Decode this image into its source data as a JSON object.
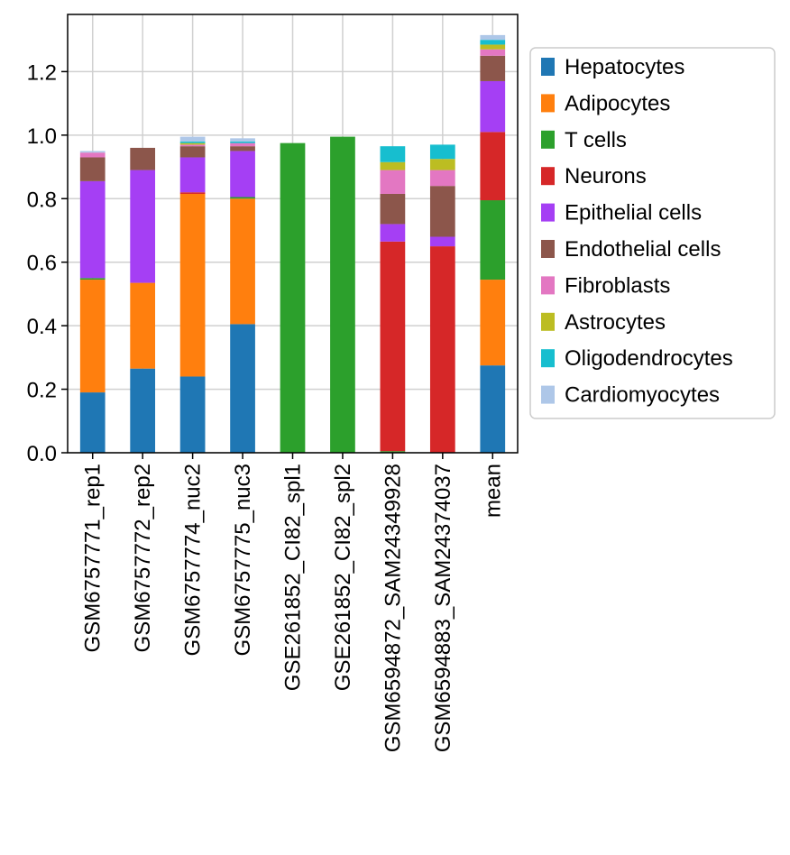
{
  "chart_data": {
    "type": "bar",
    "stacked": true,
    "title": "",
    "xlabel": "",
    "ylabel": "",
    "ylim": [
      0,
      1.38
    ],
    "yticks": [
      0.0,
      0.2,
      0.4,
      0.6,
      0.8,
      1.0,
      1.2
    ],
    "ytick_labels": [
      "0.0",
      "0.2",
      "0.4",
      "0.6",
      "0.8",
      "1.0",
      "1.2"
    ],
    "grid": true,
    "legend_position": "right",
    "categories": [
      "GSM6757771_rep1",
      "GSM6757772_rep2",
      "GSM6757774_nuc2",
      "GSM6757775_nuc3",
      "GSE261852_CI82_spl1",
      "GSE261852_CI82_spl2",
      "GSM6594872_SAM24349928",
      "GSM6594883_SAM24374037",
      "mean"
    ],
    "series": [
      {
        "name": "Hepatocytes",
        "color": "#1f77b4",
        "values": [
          0.19,
          0.265,
          0.24,
          0.405,
          0.0,
          0.0,
          0.0,
          0.0,
          0.275
        ]
      },
      {
        "name": "Adipocytes",
        "color": "#ff7f0e",
        "values": [
          0.355,
          0.27,
          0.575,
          0.395,
          0.0,
          0.0,
          0.0,
          0.0,
          0.27
        ]
      },
      {
        "name": "T cells",
        "color": "#2ca02c",
        "values": [
          0.005,
          0.0,
          0.0,
          0.005,
          0.975,
          0.995,
          0.005,
          0.0,
          0.25
        ]
      },
      {
        "name": "Neurons",
        "color": "#d62728",
        "values": [
          0.0,
          0.0,
          0.005,
          0.0,
          0.0,
          0.0,
          0.66,
          0.65,
          0.215
        ]
      },
      {
        "name": "Epithelial cells",
        "color": "#a53ff4",
        "values": [
          0.305,
          0.355,
          0.11,
          0.145,
          0.0,
          0.0,
          0.055,
          0.03,
          0.16
        ]
      },
      {
        "name": "Endothelial cells",
        "color": "#8c564b",
        "values": [
          0.075,
          0.07,
          0.035,
          0.015,
          0.0,
          0.0,
          0.095,
          0.16,
          0.08
        ]
      },
      {
        "name": "Fibroblasts",
        "color": "#e377c2",
        "values": [
          0.015,
          0.0,
          0.005,
          0.01,
          0.0,
          0.0,
          0.075,
          0.05,
          0.02
        ]
      },
      {
        "name": "Astrocytes",
        "color": "#bcbd22",
        "values": [
          0.0,
          0.0,
          0.005,
          0.0,
          0.0,
          0.0,
          0.025,
          0.035,
          0.015
        ]
      },
      {
        "name": "Oligodendrocytes",
        "color": "#17becf",
        "values": [
          0.0,
          0.0,
          0.005,
          0.005,
          0.0,
          0.0,
          0.05,
          0.045,
          0.015
        ]
      },
      {
        "name": "Cardiomyocytes",
        "color": "#aec7e8",
        "values": [
          0.005,
          0.0,
          0.015,
          0.01,
          0.0,
          0.0,
          0.0,
          0.0,
          0.015
        ]
      }
    ]
  }
}
